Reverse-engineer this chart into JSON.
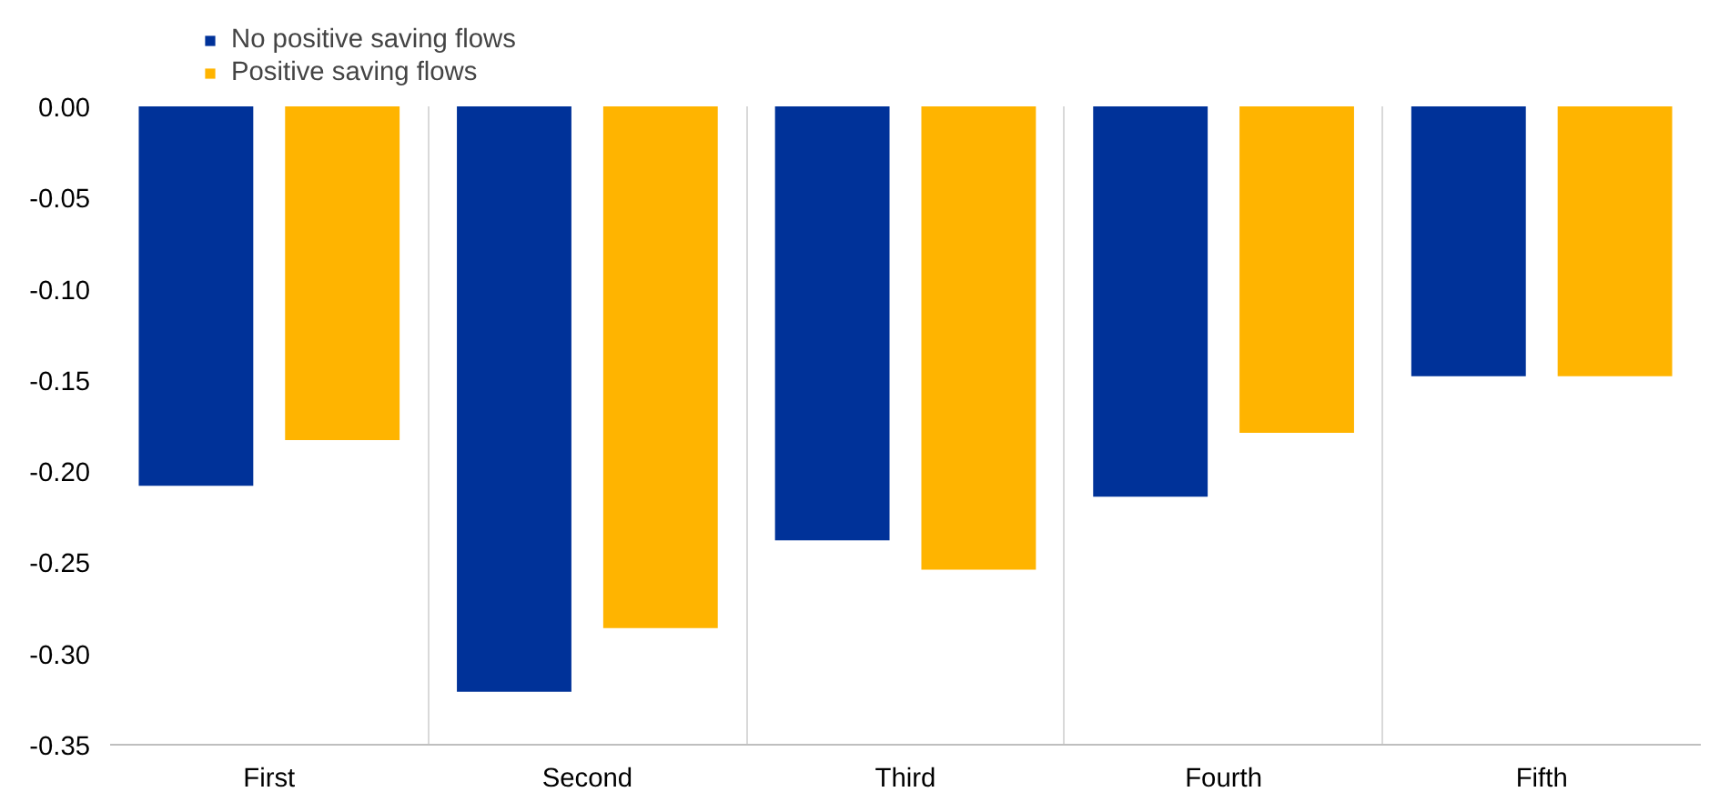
{
  "chart_data": {
    "type": "bar",
    "categories": [
      "First",
      "Second",
      "Third",
      "Fourth",
      "Fifth"
    ],
    "series": [
      {
        "name": "No positive saving flows",
        "color": "#003299",
        "values": [
          -0.208,
          -0.321,
          -0.238,
          -0.214,
          -0.148
        ]
      },
      {
        "name": "Positive saving flows",
        "color": "#ffb400",
        "values": [
          -0.183,
          -0.286,
          -0.254,
          -0.179,
          -0.148
        ]
      }
    ],
    "ylim": [
      -0.35,
      0
    ],
    "yticks": [
      {
        "value": 0,
        "label": "0.00"
      },
      {
        "value": -0.05,
        "label": "-0.05"
      },
      {
        "value": -0.1,
        "label": "-0.10"
      },
      {
        "value": -0.15,
        "label": "-0.15"
      },
      {
        "value": -0.2,
        "label": "-0.20"
      },
      {
        "value": -0.25,
        "label": "-0.25"
      },
      {
        "value": -0.3,
        "label": "-0.30"
      },
      {
        "value": -0.35,
        "label": "-0.35"
      }
    ],
    "grid": "x",
    "legend": "top left"
  }
}
